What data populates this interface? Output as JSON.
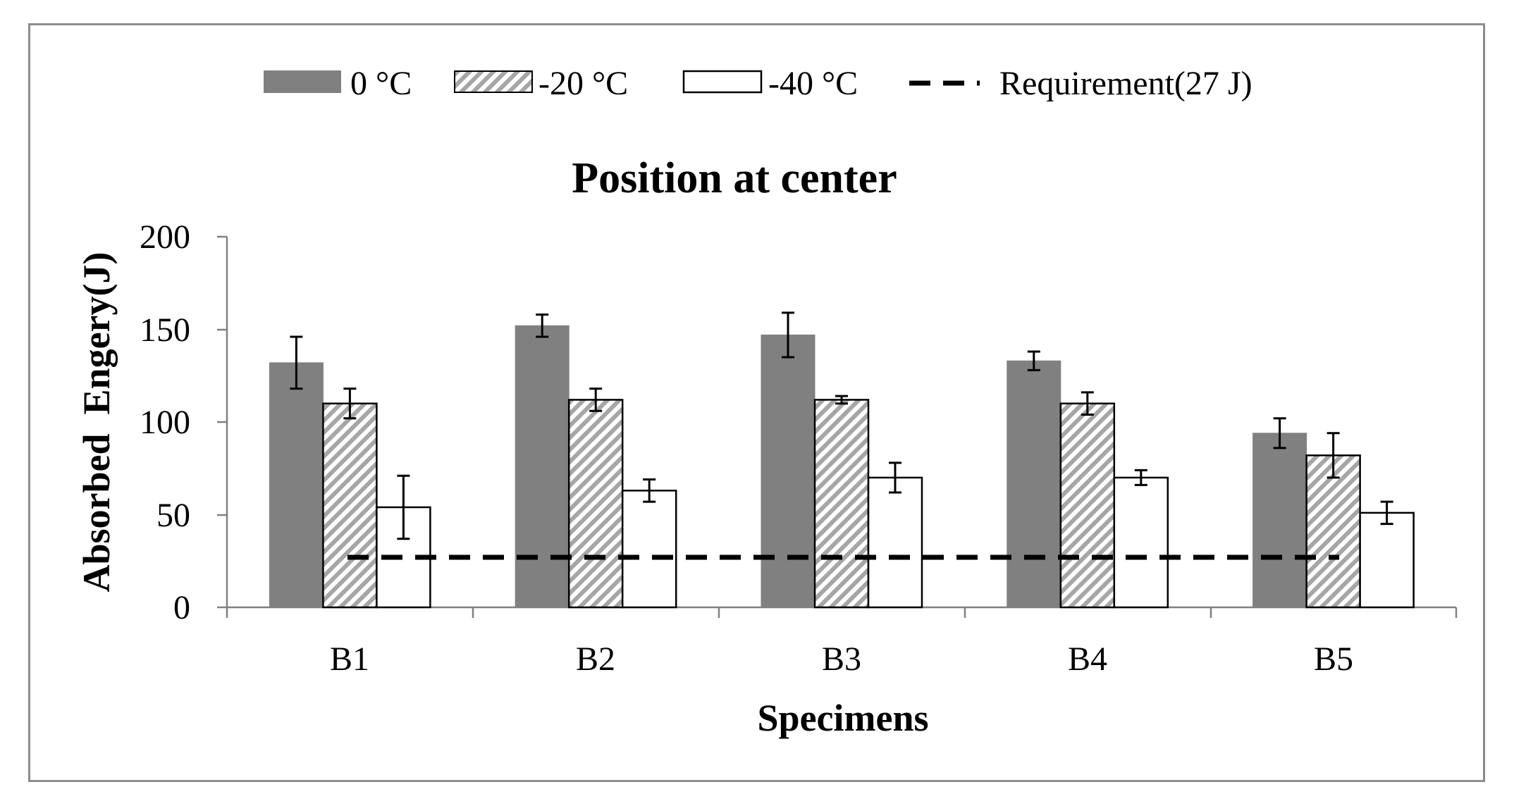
{
  "chart_data": {
    "type": "bar",
    "title": "Position at center",
    "xlabel": "Specimens",
    "ylabel": "Absorbed  Engery(J)",
    "categories": [
      "B1",
      "B2",
      "B3",
      "B4",
      "B5"
    ],
    "ylim": [
      0,
      200
    ],
    "yticks": [
      0,
      50,
      100,
      150,
      200
    ],
    "ytick_labels": [
      "0",
      "50",
      "100",
      "150",
      "200"
    ],
    "legend_position": "top",
    "series": [
      {
        "name": "0 °C",
        "fill": "solid",
        "color": "#808080",
        "values": [
          132,
          152,
          147,
          133,
          94
        ],
        "errors": [
          14,
          6,
          12,
          5,
          8
        ]
      },
      {
        "name": "-20 °C",
        "fill": "hatched",
        "color": "#a6a6a6",
        "values": [
          110,
          112,
          112,
          110,
          82
        ],
        "errors": [
          8,
          6,
          2,
          6,
          12
        ]
      },
      {
        "name": "-40 °C",
        "fill": "none",
        "color": "#000000",
        "values": [
          54,
          63,
          70,
          70,
          51
        ],
        "errors": [
          17,
          6,
          8,
          4,
          6
        ]
      }
    ],
    "reference_line": {
      "name": "Requirement(27 J)",
      "value": 27,
      "style": "dashed",
      "color": "#000000"
    }
  }
}
